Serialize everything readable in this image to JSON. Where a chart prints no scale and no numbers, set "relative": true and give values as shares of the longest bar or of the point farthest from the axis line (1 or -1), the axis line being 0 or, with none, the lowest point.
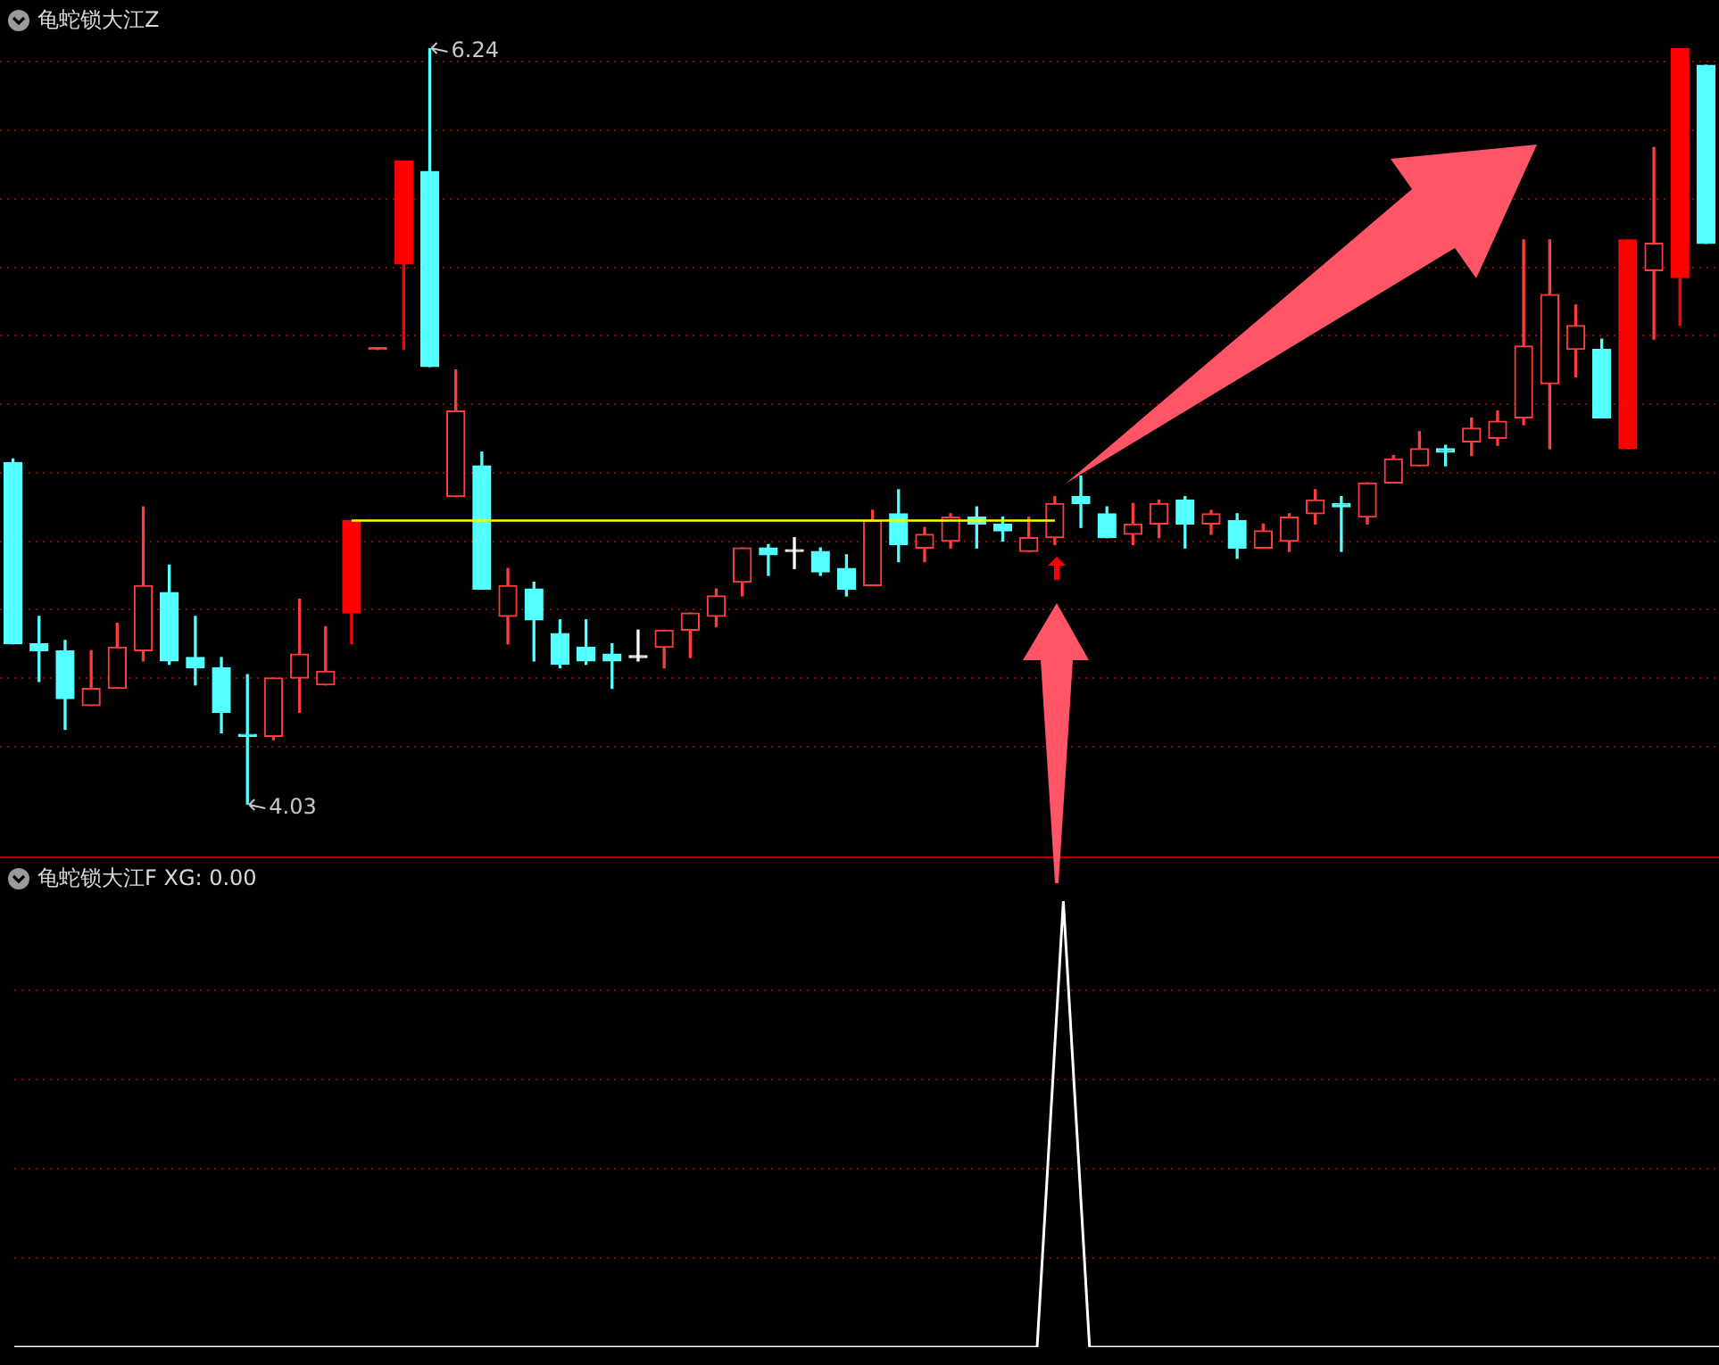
{
  "chart_data": [
    {
      "type": "candlestick",
      "title": "龟蛇锁大江Z",
      "categories": [
        null,
        null,
        null,
        null,
        null,
        null,
        null,
        null,
        null,
        null,
        null,
        null,
        null,
        null,
        null,
        null,
        null,
        null,
        null,
        null,
        null,
        null,
        null,
        null,
        null,
        null,
        null,
        null,
        null,
        null,
        null,
        null,
        null,
        null,
        null,
        null,
        null,
        null,
        null,
        null,
        null,
        null,
        null,
        null,
        null,
        null,
        null,
        null,
        null,
        null,
        null,
        null,
        null,
        null,
        null,
        null,
        null,
        null,
        null,
        null,
        null,
        null,
        null,
        null,
        null,
        null
      ],
      "ohlc": [
        [
          5.03,
          5.04,
          4.5,
          4.5
        ],
        [
          4.5,
          4.58,
          4.39,
          4.48
        ],
        [
          4.48,
          4.51,
          4.25,
          4.34
        ],
        [
          4.32,
          4.48,
          4.32,
          4.37
        ],
        [
          4.37,
          4.56,
          4.37,
          4.49
        ],
        [
          4.48,
          4.9,
          4.45,
          4.67
        ],
        [
          4.65,
          4.73,
          4.44,
          4.45
        ],
        [
          4.46,
          4.58,
          4.38,
          4.43
        ],
        [
          4.43,
          4.46,
          4.24,
          4.3
        ],
        [
          4.23,
          4.41,
          4.03,
          4.23
        ],
        [
          4.23,
          4.4,
          4.22,
          4.4
        ],
        [
          4.4,
          4.63,
          4.3,
          4.47
        ],
        [
          4.38,
          4.55,
          4.38,
          4.42
        ],
        [
          4.59,
          4.86,
          4.5,
          4.86
        ],
        [
          5.36,
          5.36,
          5.36,
          5.36
        ],
        [
          5.61,
          5.91,
          5.36,
          5.91
        ],
        [
          5.88,
          6.24,
          5.31,
          5.31
        ],
        [
          4.93,
          5.3,
          4.93,
          5.18
        ],
        [
          5.02,
          5.06,
          4.66,
          4.66
        ],
        [
          4.58,
          4.72,
          4.5,
          4.67
        ],
        [
          4.66,
          4.68,
          4.45,
          4.57
        ],
        [
          4.53,
          4.57,
          4.43,
          4.44
        ],
        [
          4.49,
          4.57,
          4.44,
          4.45
        ],
        [
          4.47,
          4.5,
          4.37,
          4.45
        ],
        [
          4.46,
          4.54,
          4.45,
          4.46
        ],
        [
          4.49,
          4.54,
          4.43,
          4.54
        ],
        [
          4.54,
          4.59,
          4.46,
          4.59
        ],
        [
          4.58,
          4.66,
          4.55,
          4.64
        ],
        [
          4.68,
          4.78,
          4.64,
          4.78
        ],
        [
          4.78,
          4.79,
          4.7,
          4.76
        ],
        [
          4.77,
          4.81,
          4.72,
          4.77
        ],
        [
          4.77,
          4.78,
          4.7,
          4.71
        ],
        [
          4.72,
          4.76,
          4.64,
          4.66
        ],
        [
          4.67,
          4.89,
          4.67,
          4.86
        ],
        [
          4.88,
          4.95,
          4.74,
          4.79
        ],
        [
          4.78,
          4.84,
          4.74,
          4.82
        ],
        [
          4.8,
          4.88,
          4.78,
          4.87
        ],
        [
          4.87,
          4.9,
          4.78,
          4.85
        ],
        [
          4.85,
          4.87,
          4.8,
          4.83
        ],
        [
          4.77,
          4.87,
          4.77,
          4.81
        ],
        [
          4.81,
          4.93,
          4.79,
          4.91
        ],
        [
          4.93,
          4.99,
          4.84,
          4.91
        ],
        [
          4.88,
          4.9,
          4.81,
          4.81
        ],
        [
          4.82,
          4.91,
          4.79,
          4.85
        ],
        [
          4.85,
          4.92,
          4.81,
          4.91
        ],
        [
          4.92,
          4.93,
          4.78,
          4.85
        ],
        [
          4.85,
          4.89,
          4.82,
          4.88
        ],
        [
          4.86,
          4.88,
          4.75,
          4.78
        ],
        [
          4.78,
          4.85,
          4.78,
          4.83
        ],
        [
          4.8,
          4.88,
          4.77,
          4.87
        ],
        [
          4.88,
          4.95,
          4.85,
          4.92
        ],
        [
          4.91,
          4.93,
          4.77,
          4.9
        ],
        [
          4.87,
          4.97,
          4.85,
          4.97
        ],
        [
          4.97,
          5.05,
          4.97,
          5.04
        ],
        [
          5.02,
          5.12,
          5.02,
          5.07
        ],
        [
          5.07,
          5.08,
          5.02,
          5.06
        ],
        [
          5.09,
          5.16,
          5.05,
          5.13
        ],
        [
          5.1,
          5.18,
          5.08,
          5.15
        ],
        [
          5.16,
          5.68,
          5.14,
          5.37
        ],
        [
          5.26,
          5.68,
          5.07,
          5.52
        ],
        [
          5.36,
          5.49,
          5.28,
          5.43
        ],
        [
          5.36,
          5.39,
          5.16,
          5.16
        ],
        [
          5.07,
          5.68,
          5.07,
          5.68
        ],
        [
          5.59,
          5.95,
          5.39,
          5.67
        ],
        [
          5.57,
          6.24,
          5.43,
          6.24
        ],
        [
          6.19,
          6.19,
          5.67,
          5.67
        ]
      ],
      "colors": [
        "#54ffff",
        "#54ffff",
        "#54ffff",
        "#ff3c3c",
        "#ff3c3c",
        "#ff3c3c",
        "#54ffff",
        "#54ffff",
        "#54ffff",
        "#54ffff",
        "#ff3c3c",
        "#ff3c3c",
        "#ff3c3c",
        "#ff0000",
        "#ff3c3c",
        "#ff0000",
        "#54ffff",
        "#ff3c3c",
        "#54ffff",
        "#ff3c3c",
        "#54ffff",
        "#54ffff",
        "#54ffff",
        "#54ffff",
        "#ffffff",
        "#ff3c3c",
        "#ff3c3c",
        "#ff3c3c",
        "#ff3c3c",
        "#54ffff",
        "#ffffff",
        "#54ffff",
        "#54ffff",
        "#ff3c3c",
        "#54ffff",
        "#ff3c3c",
        "#ff3c3c",
        "#54ffff",
        "#54ffff",
        "#ff3c3c",
        "#ff3c3c",
        "#54ffff",
        "#54ffff",
        "#ff3c3c",
        "#ff3c3c",
        "#54ffff",
        "#ff3c3c",
        "#54ffff",
        "#ff3c3c",
        "#ff3c3c",
        "#ff3c3c",
        "#54ffff",
        "#ff3c3c",
        "#ff3c3c",
        "#ff3c3c",
        "#54ffff",
        "#ff3c3c",
        "#ff3c3c",
        "#ff3c3c",
        "#ff3c3c",
        "#ff3c3c",
        "#54ffff",
        "#ff0000",
        "#ff3c3c",
        "#ff0000",
        "#54ffff"
      ],
      "series": [
        {
          "type": "line",
          "color": "#ffff00",
          "values": [
            null,
            null,
            null,
            null,
            null,
            null,
            null,
            null,
            null,
            null,
            null,
            null,
            null,
            4.86,
            4.86,
            4.86,
            4.86,
            4.86,
            4.86,
            4.86,
            4.86,
            4.86,
            4.86,
            4.86,
            4.86,
            4.86,
            4.86,
            4.86,
            4.86,
            4.86,
            4.86,
            4.86,
            4.86,
            4.86,
            4.86,
            4.86,
            4.86,
            4.86,
            4.86,
            4.86,
            4.86,
            null,
            null,
            null,
            null,
            null,
            null,
            null,
            null,
            null,
            null,
            null,
            null,
            null,
            null,
            null,
            null,
            null,
            null,
            null,
            null,
            null,
            null,
            null,
            null,
            null
          ]
        }
      ],
      "annotations": [
        "6.24",
        "4.03"
      ],
      "yticks": [
        {
          "value": 4.2,
          "label": null
        },
        {
          "value": 4.4,
          "label": null
        },
        {
          "value": 4.6,
          "label": null
        },
        {
          "value": 4.8,
          "label": null
        },
        {
          "value": 5.0,
          "label": null
        },
        {
          "value": 5.2,
          "label": null
        },
        {
          "value": 5.4,
          "label": null
        },
        {
          "value": 5.6,
          "label": null
        },
        {
          "value": 5.8,
          "label": null
        },
        {
          "value": 6.0,
          "label": null
        },
        {
          "value": 6.2,
          "label": null
        }
      ],
      "grid": true,
      "tick_labels": false,
      "legend": false
    },
    {
      "type": "line",
      "title": "龟蛇锁大江F XG: 0.00",
      "relative": true,
      "categories": [
        null,
        null,
        null,
        null,
        null,
        null,
        null,
        null,
        null,
        null,
        null,
        null,
        null,
        null,
        null,
        null,
        null,
        null,
        null,
        null,
        null,
        null,
        null,
        null,
        null,
        null,
        null,
        null,
        null,
        null,
        null,
        null,
        null,
        null,
        null,
        null,
        null,
        null,
        null,
        null,
        null,
        null,
        null,
        null,
        null,
        null,
        null,
        null,
        null,
        null,
        null,
        null,
        null,
        null,
        null,
        null,
        null,
        null,
        null,
        null,
        null,
        null,
        null,
        null,
        null,
        null
      ],
      "series": [
        {
          "color": "#ffffff",
          "values": [
            0,
            0,
            0,
            0,
            0,
            0,
            0,
            0,
            0,
            0,
            0,
            0,
            0,
            0,
            0,
            0,
            0,
            0,
            0,
            0,
            0,
            0,
            0,
            0,
            0,
            0,
            0,
            0,
            0,
            0,
            0,
            0,
            0,
            0,
            0,
            0,
            0,
            0,
            0,
            0,
            1,
            0,
            0,
            0,
            0,
            0,
            0,
            0,
            0,
            0,
            0,
            0,
            0,
            0,
            0,
            0,
            0,
            0,
            0,
            0,
            0,
            0,
            0,
            0,
            0,
            0
          ]
        }
      ],
      "ref_lines": [
        {
          "axis": "y",
          "value": 0.2,
          "color": "#9a0000",
          "line_style": "dotted"
        },
        {
          "axis": "y",
          "value": 0.4,
          "color": "#9a0000",
          "line_style": "dotted"
        },
        {
          "axis": "y",
          "value": 0.6,
          "color": "#9a0000",
          "line_style": "dotted"
        },
        {
          "axis": "y",
          "value": 0.8,
          "color": "#9a0000",
          "line_style": "dotted"
        }
      ],
      "tick_labels": false,
      "legend": false
    }
  ]
}
